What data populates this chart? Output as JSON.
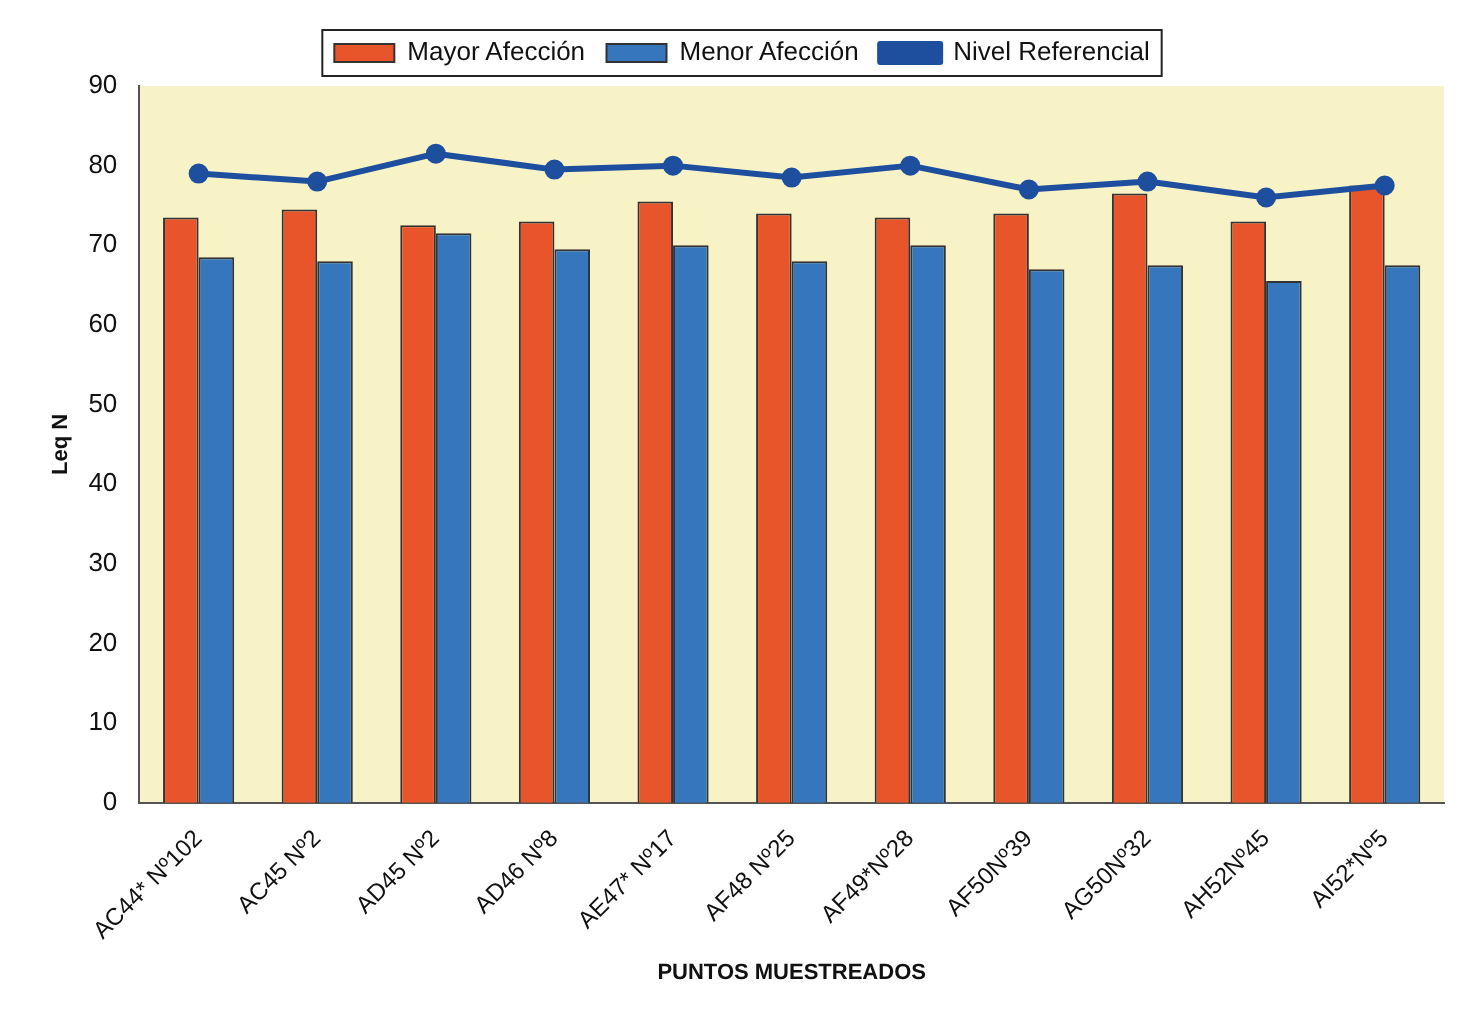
{
  "chart_data": {
    "type": "bar",
    "xlabel": "PUNTOS MUESTREADOS",
    "ylabel": "Leq N",
    "categories": [
      "AC44* Nº102",
      "AC45 Nº2",
      "AD45 Nº2",
      "AD46 Nº8",
      "AE47* Nº17",
      "AF48 Nº25",
      "AF49*Nº28",
      "AF50Nº39",
      "AG50Nº32",
      "AH52Nº45",
      "AI52*Nº5"
    ],
    "series": [
      {
        "name": "Mayor Afección",
        "color": "#e9552b",
        "values": [
          73.5,
          74.5,
          72.5,
          73,
          75.5,
          74,
          73.5,
          74,
          76.5,
          73,
          77.5
        ]
      },
      {
        "name": "Menor Afección",
        "color": "#3576bd",
        "values": [
          68.5,
          68,
          71.5,
          69.5,
          70,
          68,
          70,
          67,
          67.5,
          65.5,
          67.5
        ]
      },
      {
        "name": "Nivel Referencial",
        "type": "line",
        "color": "#1d4f9e",
        "values": [
          79,
          78,
          81.5,
          79.5,
          80,
          78.5,
          80,
          77,
          78,
          76,
          77.5
        ]
      }
    ],
    "ylim": [
      0,
      90
    ],
    "yticks": [
      0,
      10,
      20,
      30,
      40,
      50,
      60,
      70,
      80,
      90
    ],
    "grid": false,
    "legend": "top",
    "marker": "circle"
  }
}
